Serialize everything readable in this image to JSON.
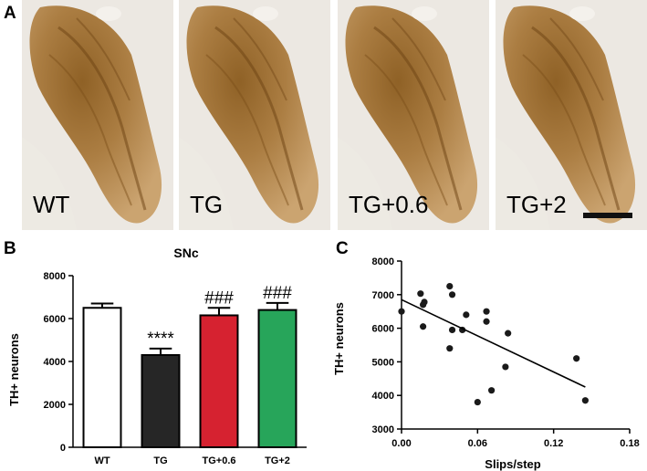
{
  "panel_a": {
    "letter": "A",
    "images": [
      {
        "label": "WT",
        "scale_bar": false
      },
      {
        "label": "TG",
        "scale_bar": false
      },
      {
        "label": "TG+0.6",
        "scale_bar": false
      },
      {
        "label": "TG+2",
        "scale_bar": true
      }
    ]
  },
  "panel_b_letter": "B",
  "panel_c_letter": "C",
  "chart_data": [
    {
      "type": "bar",
      "title": "SNc",
      "ylabel": "TH+ neurons",
      "xlabel": "",
      "categories": [
        "WT",
        "TG",
        "TG+0.6",
        "TG+2"
      ],
      "values": [
        6500,
        4300,
        6150,
        6400
      ],
      "errors": [
        200,
        300,
        350,
        330
      ],
      "annotations": [
        "",
        "****",
        "###",
        "###"
      ],
      "colors": [
        "#ffffff",
        "#262626",
        "#d62230",
        "#27a55a"
      ],
      "ylim": [
        0,
        8000
      ],
      "yticks": [
        0,
        2000,
        4000,
        6000,
        8000
      ]
    },
    {
      "type": "scatter",
      "title": "",
      "xlabel": "Slips/step",
      "ylabel": "TH+ neurons",
      "xlim": [
        0,
        0.18
      ],
      "ylim": [
        3000,
        8000
      ],
      "xticks": [
        0.0,
        0.06,
        0.12,
        0.18
      ],
      "xtick_labels": [
        "0.00",
        "0.06",
        "0.12",
        "0.18"
      ],
      "yticks": [
        3000,
        4000,
        5000,
        6000,
        7000,
        8000
      ],
      "points": [
        {
          "x": 0.0,
          "y": 6500
        },
        {
          "x": 0.015,
          "y": 7030
        },
        {
          "x": 0.017,
          "y": 6700
        },
        {
          "x": 0.018,
          "y": 6780
        },
        {
          "x": 0.017,
          "y": 6050
        },
        {
          "x": 0.038,
          "y": 7250
        },
        {
          "x": 0.04,
          "y": 7000
        },
        {
          "x": 0.038,
          "y": 5400
        },
        {
          "x": 0.04,
          "y": 5950
        },
        {
          "x": 0.048,
          "y": 5950
        },
        {
          "x": 0.051,
          "y": 6400
        },
        {
          "x": 0.06,
          "y": 3800
        },
        {
          "x": 0.067,
          "y": 6500
        },
        {
          "x": 0.067,
          "y": 6200
        },
        {
          "x": 0.071,
          "y": 4150
        },
        {
          "x": 0.082,
          "y": 4850
        },
        {
          "x": 0.084,
          "y": 5850
        },
        {
          "x": 0.138,
          "y": 5100
        },
        {
          "x": 0.145,
          "y": 3850
        }
      ],
      "fit_line": {
        "x": [
          0.0,
          0.145
        ],
        "y": [
          6850,
          4250
        ]
      }
    }
  ]
}
